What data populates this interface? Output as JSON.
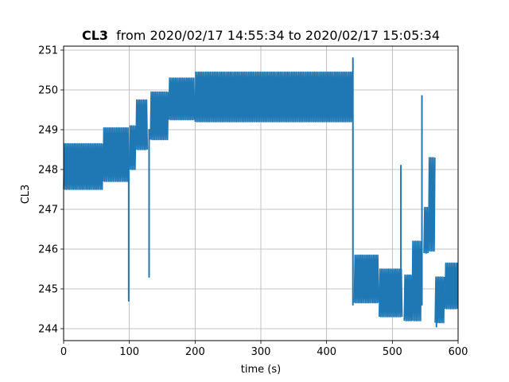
{
  "chart_data": {
    "type": "line",
    "title": {
      "bold": "CL3",
      "rest": "from 2020/02/17 14:55:34 to 2020/02/17 15:05:34"
    },
    "xlabel": "time (s)",
    "ylabel": "CL3",
    "xlim": [
      0,
      600
    ],
    "ylim": [
      243.7,
      251.1
    ],
    "x_ticks": [
      0,
      100,
      200,
      300,
      400,
      500,
      600
    ],
    "y_ticks": [
      244,
      245,
      246,
      247,
      248,
      249,
      250,
      251
    ],
    "grid": true,
    "legend": "none",
    "series": [
      {
        "color": "#1f77b4",
        "bands": [
          {
            "x": [
              0,
              60
            ],
            "min": 247.5,
            "max": 248.65
          },
          {
            "x": [
              60,
              100
            ],
            "min": 247.7,
            "max": 249.05
          },
          {
            "x": [
              100,
              110
            ],
            "min": 248.0,
            "max": 249.1
          },
          {
            "x": [
              110,
              128
            ],
            "min": 248.5,
            "max": 249.75
          },
          {
            "x": [
              132,
              160
            ],
            "min": 248.75,
            "max": 249.95
          },
          {
            "x": [
              160,
              200
            ],
            "min": 249.25,
            "max": 250.3
          },
          {
            "x": [
              200,
              440
            ],
            "min": 249.2,
            "max": 250.45
          },
          {
            "x": [
              442,
              480
            ],
            "min": 244.65,
            "max": 245.85
          },
          {
            "x": [
              480,
              515
            ],
            "min": 244.3,
            "max": 245.5
          },
          {
            "x": [
              518,
              530
            ],
            "min": 244.2,
            "max": 245.35
          },
          {
            "x": [
              530,
              545
            ],
            "min": 244.2,
            "max": 246.2
          },
          {
            "x": [
              548,
              555
            ],
            "min": 245.9,
            "max": 247.05
          },
          {
            "x": [
              555,
              565
            ],
            "min": 245.95,
            "max": 248.3
          },
          {
            "x": [
              565,
              580
            ],
            "min": 244.15,
            "max": 245.3
          },
          {
            "x": [
              580,
              600
            ],
            "min": 244.5,
            "max": 245.65
          }
        ],
        "spikes": [
          {
            "x": 99,
            "from": 248.0,
            "to": 244.7
          },
          {
            "x": 130,
            "from": 249.0,
            "to": 245.3
          },
          {
            "x": 440,
            "from": 250.8,
            "to": 244.6
          },
          {
            "x": 513,
            "from": 244.5,
            "to": 248.1
          },
          {
            "x": 545,
            "from": 244.6,
            "to": 249.85
          },
          {
            "x": 567,
            "from": 245.0,
            "to": 244.05
          }
        ]
      }
    ]
  }
}
